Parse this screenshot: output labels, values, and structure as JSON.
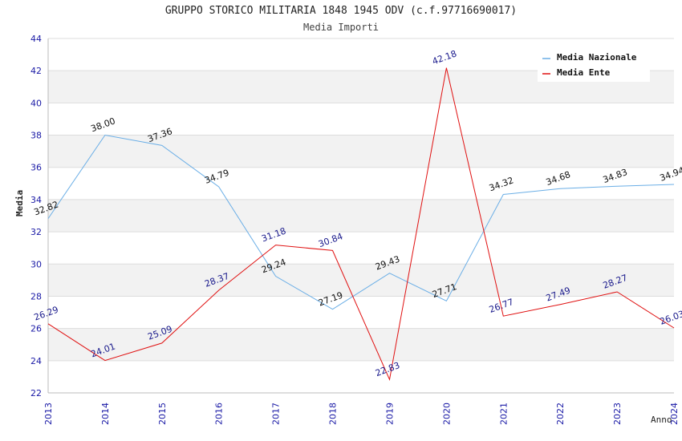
{
  "chart_data": {
    "type": "line",
    "title": "GRUPPO STORICO MILITARIA 1848 1945 ODV (c.f.97716690017)",
    "subtitle": "Media Importi",
    "xlabel": "Anno",
    "ylabel": "Media",
    "categories": [
      "2013",
      "2014",
      "2015",
      "2016",
      "2017",
      "2018",
      "2019",
      "2020",
      "2021",
      "2022",
      "2023",
      "2024"
    ],
    "ylim": [
      22,
      44
    ],
    "yticks": [
      22,
      24,
      26,
      28,
      30,
      32,
      34,
      36,
      38,
      40,
      42,
      44
    ],
    "grid": true,
    "legend_position": "top-right",
    "series": [
      {
        "name": "Media Nazionale",
        "color": "#6aaee6",
        "values": [
          32.82,
          38.0,
          37.36,
          34.79,
          29.24,
          27.19,
          29.43,
          27.71,
          34.32,
          34.68,
          34.83,
          34.94
        ],
        "labels": [
          "32.82",
          "38.00",
          "37.36",
          "34.79",
          "29.24",
          "27.19",
          "29.43",
          "27.71",
          "34.32",
          "34.68",
          "34.83",
          "34.94"
        ]
      },
      {
        "name": "Media Ente",
        "color": "#e01010",
        "values": [
          26.29,
          24.01,
          25.09,
          28.37,
          31.18,
          30.84,
          22.83,
          42.18,
          26.77,
          27.49,
          28.27,
          26.03
        ],
        "labels": [
          "26.29",
          "24.01",
          "25.09",
          "28.37",
          "31.18",
          "30.84",
          "22.83",
          "42.18",
          "26.77",
          "27.49",
          "28.27",
          "26.03"
        ]
      }
    ]
  }
}
